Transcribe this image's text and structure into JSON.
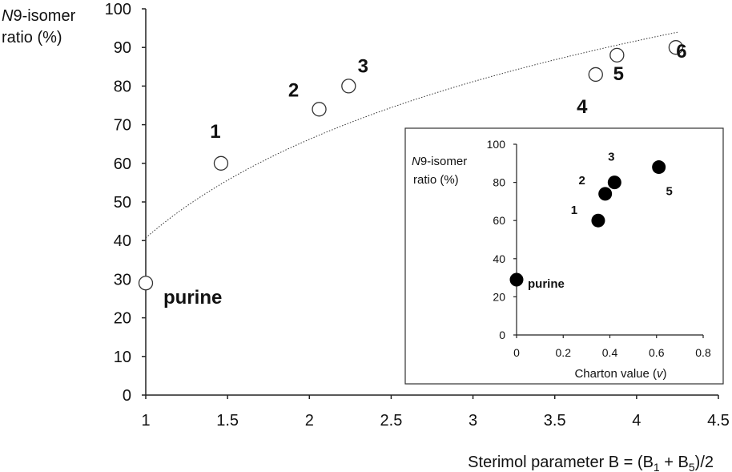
{
  "chart_data": [
    {
      "type": "scatter",
      "name": "main",
      "title": "",
      "ylabel": {
        "italic": "N",
        "rest": "9-isomer",
        "line2": "ratio (%)"
      },
      "xlabel": {
        "prefix": "Sterimol parameter B = (B",
        "sub1": "1",
        "mid": " + B",
        "sub2": "5",
        "suffix": ")/2"
      },
      "xlim": [
        1,
        4.5
      ],
      "ylim": [
        0,
        100
      ],
      "xticks": [
        "1",
        "1.5",
        "2",
        "2.5",
        "3",
        "3.5",
        "4",
        "4.5"
      ],
      "yticks": [
        "0",
        "10",
        "20",
        "30",
        "40",
        "50",
        "60",
        "70",
        "80",
        "90",
        "100"
      ],
      "grid": false,
      "marker": "open-circle",
      "points": [
        {
          "label": "purine",
          "x": 1.0,
          "y": 29
        },
        {
          "label": "1",
          "x": 1.46,
          "y": 60
        },
        {
          "label": "2",
          "x": 2.06,
          "y": 74
        },
        {
          "label": "3",
          "x": 2.24,
          "y": 80
        },
        {
          "label": "4",
          "x": 3.75,
          "y": 83
        },
        {
          "label": "5",
          "x": 3.88,
          "y": 88
        },
        {
          "label": "6",
          "x": 4.24,
          "y": 90
        }
      ],
      "trendline": {
        "type": "logarithmic",
        "a": 40.7,
        "b": 36.8,
        "x_range": [
          1,
          4.25
        ],
        "style": "dotted"
      }
    },
    {
      "type": "scatter",
      "name": "inset",
      "title": "",
      "ylabel": {
        "italic": "N",
        "rest": "9-isomer",
        "line2": "ratio (%)"
      },
      "xlabel": {
        "prefix": "Charton value (",
        "italic": "v",
        "suffix": ")"
      },
      "xlim": [
        0,
        0.8
      ],
      "ylim": [
        0,
        100
      ],
      "xticks": [
        "0",
        "0.2",
        "0.4",
        "0.6",
        "0.8"
      ],
      "yticks": [
        "0",
        "20",
        "40",
        "60",
        "80",
        "100"
      ],
      "grid": false,
      "marker": "filled-circle",
      "points": [
        {
          "label": "purine",
          "x": 0.0,
          "y": 29
        },
        {
          "label": "1",
          "x": 0.35,
          "y": 60
        },
        {
          "label": "2",
          "x": 0.38,
          "y": 74
        },
        {
          "label": "3",
          "x": 0.42,
          "y": 80
        },
        {
          "label": "5",
          "x": 0.61,
          "y": 88
        }
      ]
    }
  ]
}
